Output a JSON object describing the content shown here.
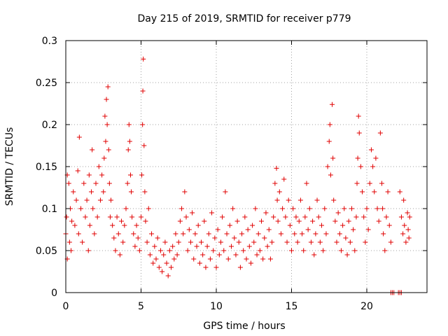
{
  "chart_data": {
    "type": "scatter",
    "title": "Day 215 of 2019, SRMTID for receiver p779",
    "xlabel": "GPS time / hours",
    "ylabel": "SRMTID / TECUs",
    "xlim": [
      0,
      24
    ],
    "ylim": [
      0,
      0.3
    ],
    "xticks": [
      0,
      5,
      10,
      15,
      20
    ],
    "xtick_labels": [
      "0",
      "5",
      "10",
      "15",
      "20"
    ],
    "yticks": [
      0,
      0.05,
      0.1,
      0.15,
      0.2,
      0.25,
      0.3
    ],
    "ytick_labels": [
      "0",
      "0.05",
      "0.1",
      "0.15",
      "0.2",
      "0.25",
      "0.3"
    ],
    "grid": true,
    "marker": "+",
    "color": "#e00000",
    "series": [
      {
        "name": "SRMTID",
        "points": [
          [
            0.0,
            0.07
          ],
          [
            0.05,
            0.09
          ],
          [
            0.1,
            0.14
          ],
          [
            0.1,
            0.04
          ],
          [
            0.2,
            0.13
          ],
          [
            0.25,
            0.06
          ],
          [
            0.3,
            0.1
          ],
          [
            0.35,
            0.05
          ],
          [
            0.4,
            0.085
          ],
          [
            0.5,
            0.12
          ],
          [
            0.6,
            0.08
          ],
          [
            0.7,
            0.11
          ],
          [
            0.8,
            0.145
          ],
          [
            0.85,
            0.07
          ],
          [
            0.9,
            0.185
          ],
          [
            1.0,
            0.1
          ],
          [
            1.1,
            0.06
          ],
          [
            1.2,
            0.13
          ],
          [
            1.3,
            0.09
          ],
          [
            1.4,
            0.11
          ],
          [
            1.5,
            0.05
          ],
          [
            1.55,
            0.14
          ],
          [
            1.6,
            0.08
          ],
          [
            1.7,
            0.12
          ],
          [
            1.75,
            0.17
          ],
          [
            1.8,
            0.1
          ],
          [
            1.9,
            0.07
          ],
          [
            2.0,
            0.13
          ],
          [
            2.1,
            0.09
          ],
          [
            2.2,
            0.15
          ],
          [
            2.3,
            0.11
          ],
          [
            2.4,
            0.14
          ],
          [
            2.5,
            0.12
          ],
          [
            2.55,
            0.16
          ],
          [
            2.6,
            0.21
          ],
          [
            2.65,
            0.18
          ],
          [
            2.7,
            0.23
          ],
          [
            2.75,
            0.2
          ],
          [
            2.8,
            0.245
          ],
          [
            2.85,
            0.17
          ],
          [
            2.9,
            0.13
          ],
          [
            2.95,
            0.09
          ],
          [
            3.0,
            0.11
          ],
          [
            3.1,
            0.08
          ],
          [
            3.2,
            0.065
          ],
          [
            3.3,
            0.05
          ],
          [
            3.4,
            0.09
          ],
          [
            3.5,
            0.07
          ],
          [
            3.6,
            0.045
          ],
          [
            3.7,
            0.085
          ],
          [
            3.8,
            0.06
          ],
          [
            3.9,
            0.08
          ],
          [
            4.0,
            0.1
          ],
          [
            4.1,
            0.13
          ],
          [
            4.15,
            0.17
          ],
          [
            4.2,
            0.2
          ],
          [
            4.25,
            0.18
          ],
          [
            4.3,
            0.14
          ],
          [
            4.35,
            0.12
          ],
          [
            4.4,
            0.09
          ],
          [
            4.5,
            0.07
          ],
          [
            4.6,
            0.055
          ],
          [
            4.7,
            0.08
          ],
          [
            4.8,
            0.065
          ],
          [
            4.9,
            0.05
          ],
          [
            5.0,
            0.09
          ],
          [
            5.05,
            0.14
          ],
          [
            5.1,
            0.2
          ],
          [
            5.12,
            0.24
          ],
          [
            5.15,
            0.278
          ],
          [
            5.2,
            0.175
          ],
          [
            5.25,
            0.12
          ],
          [
            5.3,
            0.085
          ],
          [
            5.4,
            0.06
          ],
          [
            5.5,
            0.1
          ],
          [
            5.6,
            0.045
          ],
          [
            5.7,
            0.07
          ],
          [
            5.8,
            0.035
          ],
          [
            5.9,
            0.055
          ],
          [
            6.0,
            0.04
          ],
          [
            6.1,
            0.065
          ],
          [
            6.2,
            0.03
          ],
          [
            6.3,
            0.05
          ],
          [
            6.4,
            0.025
          ],
          [
            6.5,
            0.045
          ],
          [
            6.6,
            0.06
          ],
          [
            6.7,
            0.035
          ],
          [
            6.8,
            0.02
          ],
          [
            6.9,
            0.05
          ],
          [
            7.0,
            0.03
          ],
          [
            7.1,
            0.055
          ],
          [
            7.2,
            0.04
          ],
          [
            7.3,
            0.07
          ],
          [
            7.4,
            0.045
          ],
          [
            7.5,
            0.06
          ],
          [
            7.6,
            0.085
          ],
          [
            7.7,
            0.1
          ],
          [
            7.8,
            0.07
          ],
          [
            7.9,
            0.12
          ],
          [
            8.0,
            0.09
          ],
          [
            8.1,
            0.05
          ],
          [
            8.2,
            0.075
          ],
          [
            8.3,
            0.06
          ],
          [
            8.4,
            0.095
          ],
          [
            8.5,
            0.04
          ],
          [
            8.6,
            0.07
          ],
          [
            8.7,
            0.055
          ],
          [
            8.8,
            0.08
          ],
          [
            8.9,
            0.035
          ],
          [
            9.0,
            0.06
          ],
          [
            9.1,
            0.045
          ],
          [
            9.2,
            0.085
          ],
          [
            9.3,
            0.03
          ],
          [
            9.4,
            0.055
          ],
          [
            9.5,
            0.07
          ],
          [
            9.6,
            0.04
          ],
          [
            9.7,
            0.095
          ],
          [
            9.8,
            0.05
          ],
          [
            9.9,
            0.065
          ],
          [
            10.0,
            0.03
          ],
          [
            10.1,
            0.075
          ],
          [
            10.2,
            0.045
          ],
          [
            10.3,
            0.06
          ],
          [
            10.4,
            0.09
          ],
          [
            10.5,
            0.05
          ],
          [
            10.6,
            0.12
          ],
          [
            10.7,
            0.07
          ],
          [
            10.8,
            0.04
          ],
          [
            10.9,
            0.08
          ],
          [
            11.0,
            0.055
          ],
          [
            11.1,
            0.1
          ],
          [
            11.2,
            0.065
          ],
          [
            11.3,
            0.045
          ],
          [
            11.4,
            0.085
          ],
          [
            11.5,
            0.06
          ],
          [
            11.6,
            0.03
          ],
          [
            11.7,
            0.07
          ],
          [
            11.8,
            0.05
          ],
          [
            11.9,
            0.09
          ],
          [
            12.0,
            0.04
          ],
          [
            12.1,
            0.075
          ],
          [
            12.2,
            0.055
          ],
          [
            12.3,
            0.035
          ],
          [
            12.4,
            0.08
          ],
          [
            12.5,
            0.06
          ],
          [
            12.6,
            0.1
          ],
          [
            12.7,
            0.045
          ],
          [
            12.8,
            0.07
          ],
          [
            12.9,
            0.05
          ],
          [
            13.0,
            0.085
          ],
          [
            13.1,
            0.04
          ],
          [
            13.2,
            0.065
          ],
          [
            13.3,
            0.095
          ],
          [
            13.4,
            0.055
          ],
          [
            13.5,
            0.075
          ],
          [
            13.6,
            0.04
          ],
          [
            13.7,
            0.06
          ],
          [
            13.8,
            0.09
          ],
          [
            13.9,
            0.13
          ],
          [
            14.0,
            0.148
          ],
          [
            14.05,
            0.11
          ],
          [
            14.1,
            0.085
          ],
          [
            14.2,
            0.12
          ],
          [
            14.3,
            0.07
          ],
          [
            14.4,
            0.1
          ],
          [
            14.5,
            0.135
          ],
          [
            14.6,
            0.09
          ],
          [
            14.7,
            0.06
          ],
          [
            14.8,
            0.11
          ],
          [
            14.9,
            0.08
          ],
          [
            15.0,
            0.05
          ],
          [
            15.1,
            0.1
          ],
          [
            15.2,
            0.07
          ],
          [
            15.3,
            0.09
          ],
          [
            15.4,
            0.06
          ],
          [
            15.5,
            0.085
          ],
          [
            15.6,
            0.11
          ],
          [
            15.7,
            0.07
          ],
          [
            15.8,
            0.05
          ],
          [
            15.9,
            0.09
          ],
          [
            16.0,
            0.13
          ],
          [
            16.1,
            0.075
          ],
          [
            16.2,
            0.1
          ],
          [
            16.3,
            0.06
          ],
          [
            16.4,
            0.085
          ],
          [
            16.5,
            0.045
          ],
          [
            16.6,
            0.07
          ],
          [
            16.7,
            0.11
          ],
          [
            16.8,
            0.09
          ],
          [
            16.9,
            0.06
          ],
          [
            17.0,
            0.08
          ],
          [
            17.1,
            0.05
          ],
          [
            17.2,
            0.1
          ],
          [
            17.3,
            0.07
          ],
          [
            17.4,
            0.15
          ],
          [
            17.5,
            0.18
          ],
          [
            17.55,
            0.2
          ],
          [
            17.6,
            0.14
          ],
          [
            17.7,
            0.224
          ],
          [
            17.75,
            0.16
          ],
          [
            17.8,
            0.11
          ],
          [
            17.9,
            0.085
          ],
          [
            18.0,
            0.06
          ],
          [
            18.1,
            0.095
          ],
          [
            18.2,
            0.07
          ],
          [
            18.3,
            0.05
          ],
          [
            18.4,
            0.08
          ],
          [
            18.5,
            0.1
          ],
          [
            18.6,
            0.065
          ],
          [
            18.7,
            0.045
          ],
          [
            18.8,
            0.085
          ],
          [
            18.9,
            0.06
          ],
          [
            19.0,
            0.1
          ],
          [
            19.1,
            0.075
          ],
          [
            19.2,
            0.05
          ],
          [
            19.3,
            0.09
          ],
          [
            19.35,
            0.13
          ],
          [
            19.4,
            0.16
          ],
          [
            19.45,
            0.21
          ],
          [
            19.5,
            0.19
          ],
          [
            19.6,
            0.15
          ],
          [
            19.7,
            0.12
          ],
          [
            19.8,
            0.09
          ],
          [
            19.9,
            0.06
          ],
          [
            20.0,
            0.1
          ],
          [
            20.1,
            0.075
          ],
          [
            20.2,
            0.13
          ],
          [
            20.3,
            0.17
          ],
          [
            20.4,
            0.15
          ],
          [
            20.5,
            0.12
          ],
          [
            20.6,
            0.16
          ],
          [
            20.7,
            0.1
          ],
          [
            20.8,
            0.085
          ],
          [
            20.9,
            0.19
          ],
          [
            21.0,
            0.13
          ],
          [
            21.05,
            0.1
          ],
          [
            21.1,
            0.07
          ],
          [
            21.2,
            0.05
          ],
          [
            21.3,
            0.09
          ],
          [
            21.4,
            0.12
          ],
          [
            21.5,
            0.08
          ],
          [
            21.6,
            0.06
          ],
          [
            22.2,
            0.12
          ],
          [
            22.3,
            0.09
          ],
          [
            22.4,
            0.07
          ],
          [
            22.45,
            0.11
          ],
          [
            22.5,
            0.08
          ],
          [
            22.6,
            0.06
          ],
          [
            22.7,
            0.095
          ],
          [
            22.75,
            0.075
          ],
          [
            22.8,
            0.065
          ],
          [
            22.85,
            0.09
          ],
          [
            21.6,
            0.0
          ],
          [
            21.7,
            0.0
          ],
          [
            21.8,
            0.0
          ],
          [
            22.1,
            0.0
          ],
          [
            22.2,
            0.0
          ],
          [
            22.3,
            0.0
          ]
        ]
      }
    ]
  }
}
